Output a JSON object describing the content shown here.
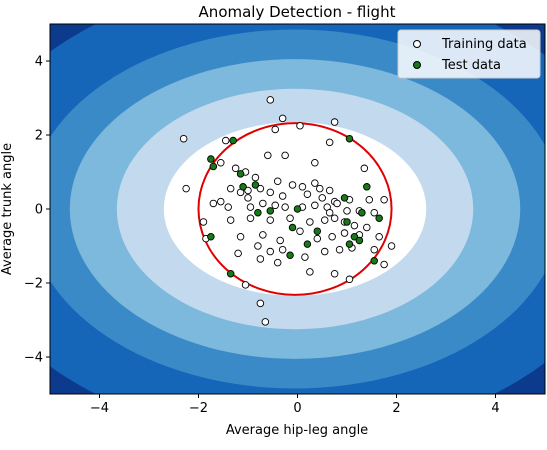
{
  "chart_data": {
    "type": "scatter",
    "title": "Anomaly Detection - flight",
    "xlabel": "Average hip-leg angle",
    "ylabel": "Average trunk angle",
    "xlim": [
      -5,
      5
    ],
    "ylim": [
      -5,
      5
    ],
    "xticks": [
      -4,
      -2,
      0,
      2,
      4
    ],
    "yticks": [
      -4,
      -2,
      0,
      2,
      4
    ],
    "grid": false,
    "legend_position": "top-right",
    "contour": {
      "center": [
        -0.05,
        0.0
      ],
      "colors": [
        "#0c3a8c",
        "#1565b8",
        "#3b8ac8",
        "#7db8dd",
        "#c2d9ee",
        "#ffffff"
      ],
      "radii": [
        [
          6.8,
          6.2
        ],
        [
          5.4,
          4.85
        ],
        [
          4.55,
          4.05
        ],
        [
          3.6,
          3.25
        ],
        [
          2.65,
          2.35
        ]
      ]
    },
    "decision_boundary": {
      "center": [
        -0.05,
        0.0
      ],
      "radius": [
        1.95,
        2.32
      ],
      "color": "#e00000"
    },
    "series": [
      {
        "name": "Training data",
        "marker_fill": "#ffffff",
        "marker_edge": "#000000",
        "points": [
          [
            -0.55,
            2.95
          ],
          [
            -0.3,
            2.45
          ],
          [
            -0.45,
            2.15
          ],
          [
            0.05,
            2.25
          ],
          [
            0.75,
            2.35
          ],
          [
            -2.3,
            1.9
          ],
          [
            -1.45,
            1.85
          ],
          [
            -0.6,
            1.45
          ],
          [
            -0.25,
            1.45
          ],
          [
            0.65,
            1.8
          ],
          [
            0.35,
            1.25
          ],
          [
            1.35,
            1.1
          ],
          [
            -1.55,
            1.25
          ],
          [
            -1.25,
            1.1
          ],
          [
            -1.05,
            1.0
          ],
          [
            -0.85,
            0.85
          ],
          [
            -0.4,
            0.75
          ],
          [
            -0.1,
            0.65
          ],
          [
            0.1,
            0.6
          ],
          [
            0.35,
            0.7
          ],
          [
            0.45,
            0.55
          ],
          [
            0.65,
            0.5
          ],
          [
            -2.25,
            0.55
          ],
          [
            -1.35,
            0.55
          ],
          [
            -1.15,
            0.45
          ],
          [
            -1.0,
            0.5
          ],
          [
            -0.75,
            0.55
          ],
          [
            -0.55,
            0.45
          ],
          [
            -0.3,
            0.35
          ],
          [
            0.2,
            0.4
          ],
          [
            0.5,
            0.3
          ],
          [
            0.75,
            0.2
          ],
          [
            1.05,
            0.25
          ],
          [
            1.45,
            0.25
          ],
          [
            1.75,
            0.25
          ],
          [
            -1.7,
            0.15
          ],
          [
            -1.55,
            0.2
          ],
          [
            -1.4,
            0.05
          ],
          [
            -0.95,
            0.05
          ],
          [
            -0.7,
            0.15
          ],
          [
            -0.45,
            0.1
          ],
          [
            -0.25,
            0.05
          ],
          [
            0.1,
            0.05
          ],
          [
            0.35,
            0.1
          ],
          [
            0.6,
            0.05
          ],
          [
            0.8,
            0.15
          ],
          [
            1.0,
            -0.05
          ],
          [
            1.3,
            -0.1
          ],
          [
            1.55,
            -0.1
          ],
          [
            -1.9,
            -0.35
          ],
          [
            -1.35,
            -0.3
          ],
          [
            -0.95,
            -0.25
          ],
          [
            -0.55,
            -0.3
          ],
          [
            -0.15,
            -0.25
          ],
          [
            0.25,
            -0.35
          ],
          [
            0.55,
            -0.3
          ],
          [
            0.75,
            -0.25
          ],
          [
            0.95,
            -0.35
          ],
          [
            1.15,
            -0.45
          ],
          [
            1.4,
            -0.5
          ],
          [
            -1.85,
            -0.8
          ],
          [
            -1.15,
            -0.75
          ],
          [
            -0.7,
            -0.7
          ],
          [
            -0.35,
            -0.85
          ],
          [
            0.05,
            -0.6
          ],
          [
            0.4,
            -0.8
          ],
          [
            0.7,
            -0.75
          ],
          [
            0.95,
            -0.65
          ],
          [
            1.25,
            -0.7
          ],
          [
            1.65,
            -0.75
          ],
          [
            -1.2,
            -1.2
          ],
          [
            -0.8,
            -1.0
          ],
          [
            -0.55,
            -1.15
          ],
          [
            -0.3,
            -1.1
          ],
          [
            0.15,
            -1.3
          ],
          [
            0.55,
            -1.15
          ],
          [
            0.85,
            -1.1
          ],
          [
            1.1,
            -1.05
          ],
          [
            1.55,
            -1.1
          ],
          [
            1.9,
            -1.0
          ],
          [
            -0.75,
            -1.35
          ],
          [
            -0.4,
            -1.45
          ],
          [
            0.25,
            -1.7
          ],
          [
            0.75,
            -1.75
          ],
          [
            1.05,
            -1.9
          ],
          [
            1.75,
            -1.5
          ],
          [
            -1.05,
            -2.05
          ],
          [
            -0.75,
            -2.55
          ],
          [
            -0.65,
            -3.05
          ],
          [
            1.25,
            -0.05
          ],
          [
            0.65,
            -0.1
          ],
          [
            -1.0,
            0.3
          ]
        ]
      },
      {
        "name": "Test data",
        "marker_fill": "#177a17",
        "marker_edge": "#000000",
        "points": [
          [
            1.05,
            1.9
          ],
          [
            -1.3,
            1.85
          ],
          [
            -1.75,
            1.35
          ],
          [
            -1.7,
            1.15
          ],
          [
            -1.15,
            0.95
          ],
          [
            -0.85,
            0.65
          ],
          [
            -1.1,
            0.6
          ],
          [
            1.4,
            0.6
          ],
          [
            0.95,
            0.3
          ],
          [
            1.3,
            -0.1
          ],
          [
            -0.55,
            -0.05
          ],
          [
            -0.8,
            -0.1
          ],
          [
            0.0,
            0.0
          ],
          [
            1.0,
            -0.35
          ],
          [
            1.65,
            -0.25
          ],
          [
            -0.1,
            -0.5
          ],
          [
            0.4,
            -0.6
          ],
          [
            1.15,
            -0.75
          ],
          [
            1.25,
            -0.85
          ],
          [
            1.05,
            -0.95
          ],
          [
            0.2,
            -0.95
          ],
          [
            -0.15,
            -1.25
          ],
          [
            1.55,
            -1.4
          ],
          [
            -1.35,
            -1.75
          ],
          [
            -1.75,
            -0.75
          ]
        ]
      }
    ]
  }
}
